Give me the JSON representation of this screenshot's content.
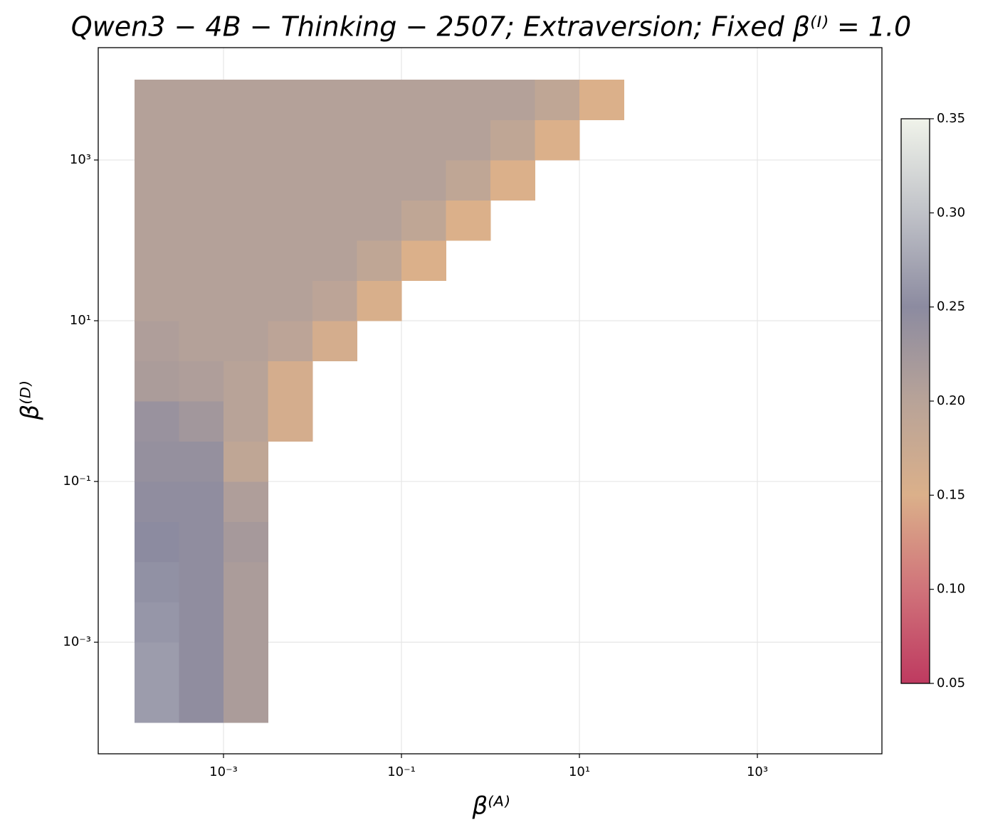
{
  "chart_data": {
    "type": "heatmap",
    "title": "Qwen3 − 4B − Thinking − 2507;  Extraversion;  Fixed β⁽ᴵ⁾ = 1.0",
    "xlabel": "β⁽ᴬ⁾",
    "ylabel": "β⁽ᴰ⁾",
    "xscale": "log",
    "yscale": "log",
    "x": [
      0.000178,
      0.000562,
      0.00178,
      0.00562,
      0.0178,
      0.0562,
      0.178,
      0.562,
      1.78,
      5.62,
      17.8,
      56.2
    ],
    "y": [
      0.000178,
      0.000562,
      0.00178,
      0.00562,
      0.0178,
      0.0562,
      0.178,
      0.562,
      1.78,
      5.62,
      17.8,
      56.2,
      178,
      562,
      1780,
      5620
    ],
    "z": [
      [
        0.265,
        0.245,
        0.215,
        null,
        null,
        null,
        null,
        null,
        null,
        null,
        null,
        null
      ],
      [
        0.265,
        0.245,
        0.215,
        null,
        null,
        null,
        null,
        null,
        null,
        null,
        null,
        null
      ],
      [
        0.26,
        0.245,
        0.215,
        null,
        null,
        null,
        null,
        null,
        null,
        null,
        null,
        null
      ],
      [
        0.255,
        0.245,
        0.215,
        null,
        null,
        null,
        null,
        null,
        null,
        null,
        null,
        null
      ],
      [
        0.25,
        0.245,
        0.22,
        null,
        null,
        null,
        null,
        null,
        null,
        null,
        null,
        null
      ],
      [
        0.245,
        0.245,
        0.21,
        null,
        null,
        null,
        null,
        null,
        null,
        null,
        null,
        null
      ],
      [
        0.24,
        0.24,
        0.19,
        null,
        null,
        null,
        null,
        null,
        null,
        null,
        null,
        null
      ],
      [
        0.235,
        0.225,
        0.2,
        0.16,
        null,
        null,
        null,
        null,
        null,
        null,
        null,
        null
      ],
      [
        0.215,
        0.21,
        0.2,
        0.16,
        null,
        null,
        null,
        null,
        null,
        null,
        null,
        null
      ],
      [
        0.21,
        0.205,
        0.205,
        0.195,
        0.16,
        null,
        null,
        null,
        null,
        null,
        null,
        null
      ],
      [
        0.205,
        0.205,
        0.205,
        0.205,
        0.195,
        0.155,
        null,
        null,
        null,
        null,
        null,
        null
      ],
      [
        0.205,
        0.205,
        0.205,
        0.205,
        0.205,
        0.19,
        0.15,
        null,
        null,
        null,
        null,
        null
      ],
      [
        0.205,
        0.205,
        0.205,
        0.205,
        0.205,
        0.205,
        0.19,
        0.15,
        null,
        null,
        null,
        null
      ],
      [
        0.205,
        0.205,
        0.205,
        0.205,
        0.205,
        0.205,
        0.205,
        0.19,
        0.15,
        null,
        null,
        null
      ],
      [
        0.205,
        0.205,
        0.205,
        0.205,
        0.205,
        0.205,
        0.205,
        0.205,
        0.19,
        0.15,
        null,
        null
      ],
      [
        0.205,
        0.205,
        0.205,
        0.205,
        0.205,
        0.205,
        0.205,
        0.205,
        0.205,
        0.19,
        0.15,
        null
      ]
    ],
    "xlim": [
      3.91e-05,
      25100
    ],
    "ylim": [
      4.09e-05,
      25000
    ],
    "xticks": [
      {
        "value": 0.001,
        "label": "10⁻³"
      },
      {
        "value": 0.1,
        "label": "10⁻¹"
      },
      {
        "value": 10,
        "label": "10¹"
      },
      {
        "value": 1000,
        "label": "10³"
      }
    ],
    "yticks": [
      {
        "value": 0.001,
        "label": "10⁻³"
      },
      {
        "value": 0.1,
        "label": "10⁻¹"
      },
      {
        "value": 10,
        "label": "10¹"
      },
      {
        "value": 1000,
        "label": "10³"
      }
    ],
    "grid": true,
    "colorbar": {
      "clim": [
        0.05,
        0.35
      ],
      "ticks": [
        0.05,
        {
          "value": 0.1,
          "label": "0.10"
        },
        0.15,
        {
          "value": 0.2,
          "label": "0.20"
        },
        0.25,
        {
          "value": 0.3,
          "label": "0.30"
        },
        0.35
      ],
      "cmap": [
        "#be3a60",
        "#d0737a",
        "#dbb08a",
        "#b8a398",
        "#8c8ba0",
        "#c0c2c8",
        "#f0f3ea"
      ]
    }
  }
}
